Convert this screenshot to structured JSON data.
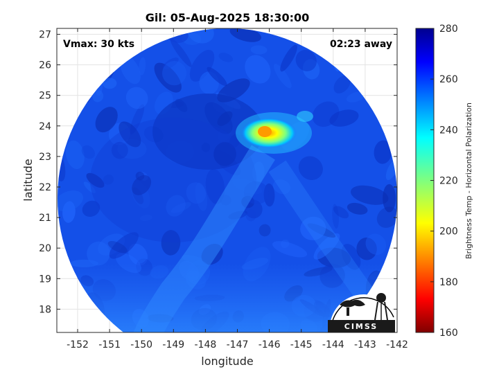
{
  "title": "Gil: 05-Aug-2025 18:30:00",
  "annotations": {
    "vmax": "Vmax: 30 kts",
    "time_away": "02:23 away"
  },
  "x_axis": {
    "label": "longitude",
    "ticks": [
      "-152",
      "-151",
      "-150",
      "-149",
      "-148",
      "-147",
      "-146",
      "-145",
      "-144",
      "-143",
      "-142"
    ]
  },
  "y_axis": {
    "label": "latitude",
    "ticks": [
      "27",
      "26",
      "25",
      "24",
      "23",
      "22",
      "21",
      "20",
      "19",
      "18"
    ]
  },
  "colorbar": {
    "label": "Brightness Temp - Horizontal Polarization",
    "ticks": [
      "280",
      "260",
      "240",
      "220",
      "200",
      "180",
      "160"
    ],
    "range": [
      160,
      280
    ],
    "colormap": "jet"
  },
  "logo": {
    "text": "CIMSS"
  },
  "image_content": {
    "description_value_field": "brightness temperature swath",
    "background_temp_K": 262,
    "min_temp_K": 198,
    "min_temp_location": {
      "lon": -146.1,
      "lat": 23.8
    },
    "warm_band_temp_K": 250
  }
}
